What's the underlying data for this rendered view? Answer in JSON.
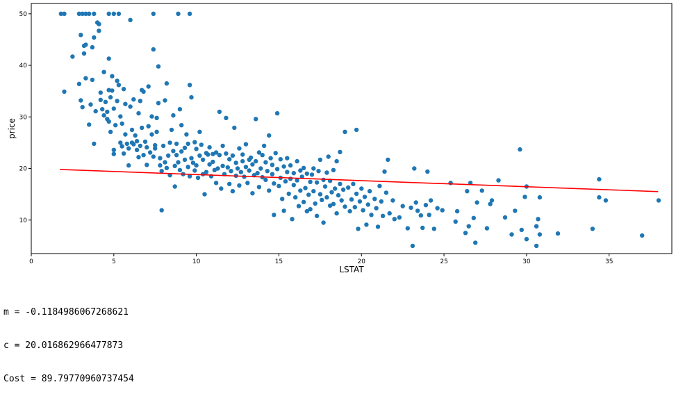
{
  "chart_data": {
    "type": "scatter",
    "xlabel": "LSTAT",
    "ylabel": "price",
    "xlim": [
      0,
      38.8
    ],
    "ylim": [
      3.5,
      52
    ],
    "xticks": [
      0,
      5,
      10,
      15,
      20,
      25,
      30,
      35
    ],
    "yticks": [
      10,
      20,
      30,
      40,
      50
    ],
    "grid": false,
    "colors": {
      "points": "#1f77b4",
      "line": "#ff0000"
    },
    "regression_line": {
      "x": [
        1.73,
        37.97
      ],
      "y": [
        19.81,
        15.52
      ]
    },
    "points": [
      [
        1.8,
        50
      ],
      [
        2.0,
        50
      ],
      [
        2.9,
        50
      ],
      [
        3.1,
        50
      ],
      [
        3.3,
        50
      ],
      [
        3.5,
        50
      ],
      [
        3.8,
        50
      ],
      [
        4.7,
        50
      ],
      [
        5.0,
        50
      ],
      [
        5.3,
        50
      ],
      [
        7.4,
        50
      ],
      [
        8.9,
        50
      ],
      [
        9.6,
        50
      ],
      [
        2.0,
        34.9
      ],
      [
        2.5,
        41.7
      ],
      [
        2.9,
        36.4
      ],
      [
        3.0,
        33.2
      ],
      [
        3.0,
        45.9
      ],
      [
        3.1,
        31.9
      ],
      [
        3.2,
        42.3
      ],
      [
        3.2,
        43.8
      ],
      [
        3.3,
        44.0
      ],
      [
        3.3,
        37.5
      ],
      [
        3.5,
        28.5
      ],
      [
        3.6,
        32.4
      ],
      [
        3.7,
        37.2
      ],
      [
        3.7,
        43.5
      ],
      [
        3.8,
        24.8
      ],
      [
        3.8,
        45.4
      ],
      [
        3.9,
        31.1
      ],
      [
        4.0,
        48.3
      ],
      [
        4.1,
        48.0
      ],
      [
        4.1,
        46.7
      ],
      [
        4.2,
        34.7
      ],
      [
        4.2,
        33.3
      ],
      [
        4.3,
        31.5
      ],
      [
        4.4,
        38.7
      ],
      [
        4.4,
        30.3
      ],
      [
        4.5,
        32.9
      ],
      [
        4.6,
        29.6
      ],
      [
        4.6,
        31.0
      ],
      [
        4.7,
        41.3
      ],
      [
        4.7,
        29.1
      ],
      [
        4.7,
        35.2
      ],
      [
        4.8,
        33.8
      ],
      [
        4.8,
        27.1
      ],
      [
        4.9,
        37.9
      ],
      [
        4.9,
        35.1
      ],
      [
        5.0,
        22.8
      ],
      [
        5.0,
        23.6
      ],
      [
        5.0,
        31.6
      ],
      [
        5.1,
        28.4
      ],
      [
        5.2,
        33.1
      ],
      [
        5.2,
        37.0
      ],
      [
        5.3,
        36.2
      ],
      [
        5.4,
        25.0
      ],
      [
        5.4,
        30.1
      ],
      [
        5.5,
        24.3
      ],
      [
        5.5,
        28.7
      ],
      [
        5.6,
        35.4
      ],
      [
        5.6,
        22.9
      ],
      [
        5.7,
        32.5
      ],
      [
        5.7,
        26.6
      ],
      [
        5.8,
        24.8
      ],
      [
        5.9,
        20.6
      ],
      [
        5.9,
        23.9
      ],
      [
        6.0,
        32.0
      ],
      [
        6.0,
        48.8
      ],
      [
        6.1,
        25.0
      ],
      [
        6.1,
        27.5
      ],
      [
        6.2,
        33.4
      ],
      [
        6.2,
        24.7
      ],
      [
        6.3,
        26.4
      ],
      [
        6.4,
        25.3
      ],
      [
        6.4,
        23.6
      ],
      [
        6.5,
        22.2
      ],
      [
        6.5,
        30.7
      ],
      [
        6.6,
        24.4
      ],
      [
        6.6,
        33.1
      ],
      [
        6.7,
        27.9
      ],
      [
        6.7,
        35.2
      ],
      [
        6.8,
        22.6
      ],
      [
        6.8,
        34.9
      ],
      [
        6.9,
        25.2
      ],
      [
        7.0,
        20.7
      ],
      [
        7.0,
        24.1
      ],
      [
        7.1,
        28.2
      ],
      [
        7.1,
        35.9
      ],
      [
        7.2,
        23.1
      ],
      [
        7.3,
        26.6
      ],
      [
        7.3,
        30.1
      ],
      [
        7.4,
        43.1
      ],
      [
        7.4,
        22.3
      ],
      [
        7.5,
        23.9
      ],
      [
        7.5,
        24.5
      ],
      [
        7.6,
        27.1
      ],
      [
        7.6,
        29.8
      ],
      [
        7.7,
        39.8
      ],
      [
        7.7,
        32.7
      ],
      [
        7.8,
        22.0
      ],
      [
        7.8,
        20.6
      ],
      [
        7.9,
        19.5
      ],
      [
        7.9,
        11.9
      ],
      [
        8.0,
        24.4
      ],
      [
        8.1,
        33.2
      ],
      [
        8.1,
        21.2
      ],
      [
        8.2,
        20.1
      ],
      [
        8.2,
        36.5
      ],
      [
        8.3,
        22.5
      ],
      [
        8.4,
        18.7
      ],
      [
        8.4,
        25.0
      ],
      [
        8.5,
        27.5
      ],
      [
        8.6,
        23.4
      ],
      [
        8.6,
        30.3
      ],
      [
        8.7,
        20.5
      ],
      [
        8.7,
        16.5
      ],
      [
        8.8,
        22.6
      ],
      [
        8.8,
        24.8
      ],
      [
        8.9,
        21.2
      ],
      [
        9.0,
        31.5
      ],
      [
        9.0,
        19.7
      ],
      [
        9.1,
        23.3
      ],
      [
        9.1,
        28.4
      ],
      [
        9.2,
        18.9
      ],
      [
        9.3,
        24.0
      ],
      [
        9.3,
        21.7
      ],
      [
        9.4,
        26.6
      ],
      [
        9.5,
        20.3
      ],
      [
        9.5,
        24.8
      ],
      [
        9.6,
        36.2
      ],
      [
        9.6,
        18.5
      ],
      [
        9.7,
        33.8
      ],
      [
        9.7,
        22.0
      ],
      [
        9.8,
        21.1
      ],
      [
        9.9,
        25.1
      ],
      [
        9.9,
        19.6
      ],
      [
        10.0,
        23.8
      ],
      [
        10.0,
        20.6
      ],
      [
        10.1,
        18.2
      ],
      [
        10.2,
        22.5
      ],
      [
        10.2,
        27.1
      ],
      [
        10.3,
        24.6
      ],
      [
        10.4,
        18.9
      ],
      [
        10.4,
        21.7
      ],
      [
        10.5,
        15.0
      ],
      [
        10.6,
        23.0
      ],
      [
        10.6,
        19.3
      ],
      [
        10.7,
        22.7
      ],
      [
        10.8,
        20.8
      ],
      [
        10.8,
        24.1
      ],
      [
        10.9,
        18.5
      ],
      [
        11.0,
        22.8
      ],
      [
        11.0,
        21.3
      ],
      [
        11.1,
        19.7
      ],
      [
        11.2,
        17.2
      ],
      [
        11.2,
        23.1
      ],
      [
        11.3,
        20.0
      ],
      [
        11.4,
        22.6
      ],
      [
        11.4,
        31.0
      ],
      [
        11.5,
        16.1
      ],
      [
        11.6,
        20.5
      ],
      [
        11.6,
        24.4
      ],
      [
        11.7,
        18.9
      ],
      [
        11.8,
        22.9
      ],
      [
        11.8,
        29.8
      ],
      [
        11.9,
        20.2
      ],
      [
        12.0,
        17.0
      ],
      [
        12.0,
        21.8
      ],
      [
        12.1,
        19.5
      ],
      [
        12.2,
        22.5
      ],
      [
        12.2,
        15.6
      ],
      [
        12.3,
        27.9
      ],
      [
        12.4,
        18.6
      ],
      [
        12.4,
        21.1
      ],
      [
        12.5,
        20.0
      ],
      [
        12.6,
        23.9
      ],
      [
        12.6,
        16.7
      ],
      [
        12.7,
        19.3
      ],
      [
        12.8,
        21.4
      ],
      [
        12.8,
        22.7
      ],
      [
        12.9,
        18.4
      ],
      [
        13.0,
        20.3
      ],
      [
        13.0,
        24.7
      ],
      [
        13.1,
        17.2
      ],
      [
        13.2,
        21.7
      ],
      [
        13.2,
        19.6
      ],
      [
        13.3,
        22.1
      ],
      [
        13.4,
        15.2
      ],
      [
        13.4,
        20.8
      ],
      [
        13.5,
        18.7
      ],
      [
        13.6,
        29.6
      ],
      [
        13.6,
        21.4
      ],
      [
        13.7,
        19.1
      ],
      [
        13.8,
        23.1
      ],
      [
        13.8,
        16.4
      ],
      [
        13.9,
        20.0
      ],
      [
        14.0,
        22.6
      ],
      [
        14.0,
        18.3
      ],
      [
        14.1,
        24.4
      ],
      [
        14.2,
        17.8
      ],
      [
        14.2,
        21.2
      ],
      [
        14.3,
        19.5
      ],
      [
        14.4,
        26.4
      ],
      [
        14.4,
        15.7
      ],
      [
        14.5,
        22.0
      ],
      [
        14.6,
        18.9
      ],
      [
        14.6,
        20.7
      ],
      [
        14.7,
        11.0
      ],
      [
        14.7,
        17.1
      ],
      [
        14.8,
        23.0
      ],
      [
        14.9,
        19.9
      ],
      [
        14.9,
        30.7
      ],
      [
        15.0,
        16.6
      ],
      [
        15.1,
        21.8
      ],
      [
        15.1,
        18.2
      ],
      [
        15.2,
        14.1
      ],
      [
        15.3,
        20.4
      ],
      [
        15.3,
        11.8
      ],
      [
        15.4,
        17.5
      ],
      [
        15.5,
        19.3
      ],
      [
        15.5,
        22.0
      ],
      [
        15.6,
        15.1
      ],
      [
        15.7,
        18.0
      ],
      [
        15.7,
        20.6
      ],
      [
        15.8,
        10.2
      ],
      [
        15.9,
        16.8
      ],
      [
        15.9,
        19.1
      ],
      [
        16.0,
        14.4
      ],
      [
        16.1,
        21.4
      ],
      [
        16.1,
        17.7
      ],
      [
        16.2,
        12.7
      ],
      [
        16.3,
        19.6
      ],
      [
        16.3,
        15.7
      ],
      [
        16.4,
        18.4
      ],
      [
        16.5,
        13.5
      ],
      [
        16.5,
        20.1
      ],
      [
        16.6,
        16.2
      ],
      [
        16.7,
        11.7
      ],
      [
        16.7,
        19.0
      ],
      [
        16.8,
        14.9
      ],
      [
        16.9,
        17.4
      ],
      [
        16.9,
        12.1
      ],
      [
        17.0,
        18.8
      ],
      [
        17.1,
        15.6
      ],
      [
        17.1,
        20.0
      ],
      [
        17.2,
        13.2
      ],
      [
        17.3,
        17.3
      ],
      [
        17.3,
        10.8
      ],
      [
        17.4,
        19.5
      ],
      [
        17.5,
        15.0
      ],
      [
        17.5,
        21.7
      ],
      [
        17.6,
        13.9
      ],
      [
        17.7,
        17.8
      ],
      [
        17.7,
        9.5
      ],
      [
        17.8,
        16.5
      ],
      [
        17.9,
        19.2
      ],
      [
        17.9,
        14.4
      ],
      [
        18.0,
        22.3
      ],
      [
        18.1,
        12.8
      ],
      [
        18.1,
        17.6
      ],
      [
        18.2,
        15.4
      ],
      [
        18.3,
        19.7
      ],
      [
        18.3,
        13.1
      ],
      [
        18.4,
        16.1
      ],
      [
        18.5,
        21.4
      ],
      [
        18.5,
        11.3
      ],
      [
        18.6,
        14.8
      ],
      [
        18.7,
        23.2
      ],
      [
        18.7,
        17.0
      ],
      [
        18.8,
        13.8
      ],
      [
        18.9,
        15.9
      ],
      [
        19.0,
        12.6
      ],
      [
        19.0,
        27.1
      ],
      [
        19.2,
        16.3
      ],
      [
        19.3,
        11.7
      ],
      [
        19.4,
        14.0
      ],
      [
        19.5,
        17.0
      ],
      [
        19.6,
        12.5
      ],
      [
        19.7,
        15.1
      ],
      [
        19.7,
        27.5
      ],
      [
        19.8,
        8.3
      ],
      [
        19.9,
        13.6
      ],
      [
        20.0,
        16.1
      ],
      [
        20.1,
        11.9
      ],
      [
        20.2,
        14.5
      ],
      [
        20.3,
        9.1
      ],
      [
        20.4,
        13.0
      ],
      [
        20.5,
        15.6
      ],
      [
        20.6,
        11.0
      ],
      [
        20.8,
        14.1
      ],
      [
        20.9,
        12.3
      ],
      [
        21.0,
        8.7
      ],
      [
        21.1,
        16.6
      ],
      [
        21.2,
        13.6
      ],
      [
        21.3,
        10.8
      ],
      [
        21.4,
        19.4
      ],
      [
        21.5,
        15.3
      ],
      [
        21.6,
        21.7
      ],
      [
        21.7,
        11.3
      ],
      [
        21.9,
        13.8
      ],
      [
        22.0,
        10.2
      ],
      [
        22.3,
        10.5
      ],
      [
        22.5,
        12.7
      ],
      [
        22.8,
        8.4
      ],
      [
        23.0,
        12.4
      ],
      [
        23.1,
        5.0
      ],
      [
        23.2,
        20.0
      ],
      [
        23.3,
        13.4
      ],
      [
        23.4,
        11.8
      ],
      [
        23.6,
        10.9
      ],
      [
        23.7,
        8.5
      ],
      [
        23.9,
        12.9
      ],
      [
        24.0,
        19.4
      ],
      [
        24.1,
        11.0
      ],
      [
        24.2,
        13.8
      ],
      [
        24.4,
        8.3
      ],
      [
        24.6,
        12.3
      ],
      [
        24.9,
        11.9
      ],
      [
        25.4,
        17.2
      ],
      [
        25.7,
        9.7
      ],
      [
        25.8,
        11.7
      ],
      [
        26.3,
        7.5
      ],
      [
        26.4,
        15.6
      ],
      [
        26.5,
        8.8
      ],
      [
        26.6,
        17.2
      ],
      [
        26.8,
        10.4
      ],
      [
        26.9,
        5.6
      ],
      [
        27.0,
        13.4
      ],
      [
        27.3,
        15.7
      ],
      [
        27.6,
        8.4
      ],
      [
        27.8,
        13.1
      ],
      [
        27.9,
        13.8
      ],
      [
        28.3,
        17.7
      ],
      [
        28.7,
        10.5
      ],
      [
        29.1,
        7.2
      ],
      [
        29.3,
        11.8
      ],
      [
        29.6,
        23.7
      ],
      [
        29.7,
        8.1
      ],
      [
        29.9,
        14.5
      ],
      [
        30.0,
        6.3
      ],
      [
        30.0,
        16.5
      ],
      [
        30.6,
        5.0
      ],
      [
        30.6,
        8.8
      ],
      [
        30.7,
        10.2
      ],
      [
        30.8,
        14.4
      ],
      [
        30.8,
        7.2
      ],
      [
        31.9,
        7.4
      ],
      [
        34.0,
        8.3
      ],
      [
        34.4,
        17.9
      ],
      [
        34.4,
        14.4
      ],
      [
        34.8,
        13.8
      ],
      [
        37.0,
        7.0
      ],
      [
        38.0,
        13.8
      ]
    ]
  },
  "output": {
    "m_line": "m = -0.1184986067268621",
    "c_line": "c = 20.016862966477873",
    "cost_line": "Cost = 89.79770960737454"
  }
}
